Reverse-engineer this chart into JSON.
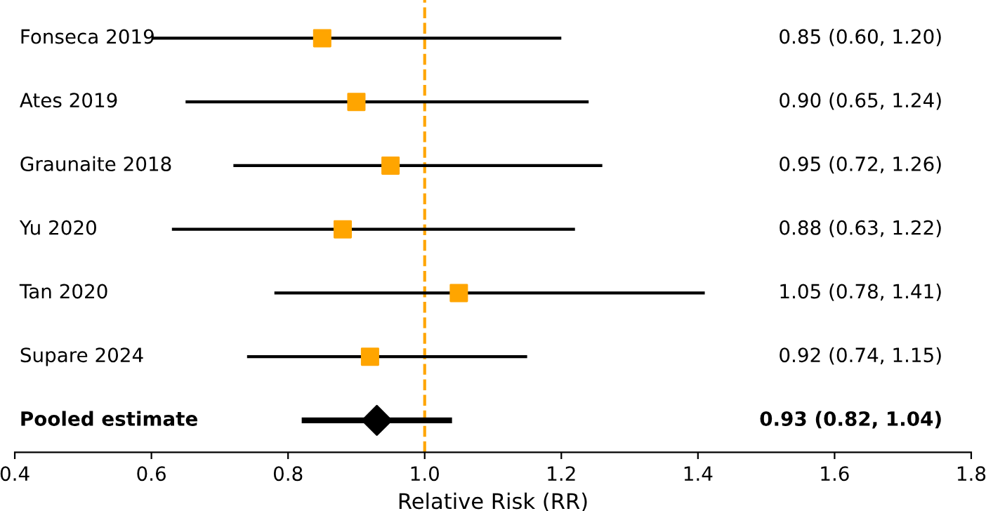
{
  "chart_data": {
    "type": "scatter",
    "orientation": "horizontal",
    "xlabel": "Relative Risk (RR)",
    "categories": [
      "Fonseca 2019",
      "Ates 2019",
      "Graunaite 2018",
      "Yu 2020",
      "Tan 2020",
      "Supare 2024",
      "Pooled estimate"
    ],
    "series": [
      {
        "color": "#ffa500",
        "marker": "square",
        "values": [
          0.85,
          0.9,
          0.95,
          0.88,
          1.05,
          0.92,
          null
        ],
        "errors": [
          [
            0.6,
            1.2
          ],
          [
            0.65,
            1.24
          ],
          [
            0.72,
            1.26
          ],
          [
            0.63,
            1.22
          ],
          [
            0.78,
            1.41
          ],
          [
            0.74,
            1.15
          ],
          null
        ]
      },
      {
        "color": "#000000",
        "marker": "diamond",
        "values": [
          null,
          null,
          null,
          null,
          null,
          null,
          0.93
        ],
        "errors": [
          null,
          null,
          null,
          null,
          null,
          null,
          [
            0.82,
            1.04
          ]
        ]
      }
    ],
    "annotations": [
      "0.85 (0.60, 1.20)",
      "0.90 (0.65, 1.24)",
      "0.95 (0.72, 1.26)",
      "0.88 (0.63, 1.22)",
      "1.05 (0.78, 1.41)",
      "0.92 (0.74, 1.15)",
      "0.93 (0.82, 1.04)"
    ],
    "xlim": [
      0.4,
      1.8
    ],
    "xticks": [
      0.4,
      0.6,
      0.8,
      {
        "value": 1,
        "label": "1.0"
      },
      1.2,
      1.4,
      1.6,
      1.8
    ],
    "ref_lines": [
      {
        "axis": "x",
        "value": 1.0,
        "color": "#ffa500",
        "line_style": "dashed"
      }
    ],
    "grid": false,
    "legend": false
  }
}
